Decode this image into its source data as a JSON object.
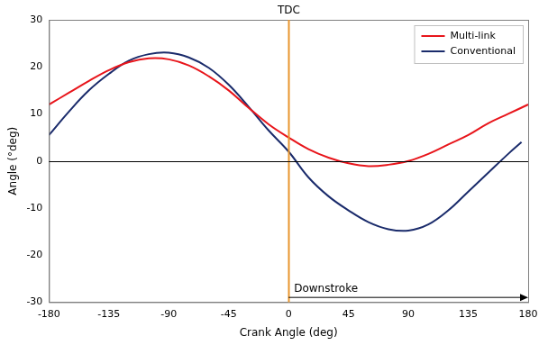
{
  "chart_data": {
    "type": "line",
    "x_label": "Crank Angle (deg)",
    "y_label": "Angle (°deg)",
    "xlim": [
      -180,
      180
    ],
    "xticks": [
      -180,
      -135,
      -90,
      -45,
      0,
      45,
      90,
      135,
      180
    ],
    "ylim": [
      -30,
      30
    ],
    "yticks": [
      -30,
      -20,
      -10,
      0,
      10,
      20,
      30
    ],
    "grid": false,
    "legend": "upper right",
    "series": [
      {
        "name": "Multi-link",
        "color": "#e8151b",
        "x": [
          -180,
          -165,
          -150,
          -135,
          -120,
          -105,
          -90,
          -75,
          -60,
          -45,
          -30,
          -15,
          0,
          15,
          30,
          45,
          60,
          75,
          90,
          105,
          120,
          135,
          150,
          165,
          180
        ],
        "values": [
          12,
          14.5,
          17,
          19.3,
          21,
          21.8,
          21.6,
          20.3,
          18,
          15,
          11.3,
          7.8,
          5,
          2.5,
          0.7,
          -0.5,
          -1.1,
          -0.8,
          0,
          1.5,
          3.5,
          5.5,
          8,
          10,
          12
        ]
      },
      {
        "name": "Conventional",
        "color": "#1a2b6b",
        "x": [
          -180,
          -165,
          -150,
          -135,
          -120,
          -105,
          -90,
          -75,
          -60,
          -45,
          -30,
          -15,
          0,
          15,
          30,
          45,
          60,
          75,
          90,
          105,
          120,
          135,
          150,
          165,
          175
        ],
        "values": [
          5.5,
          10.5,
          15,
          18.5,
          21.3,
          22.7,
          23,
          22,
          19.8,
          16.2,
          11.5,
          6.5,
          2,
          -3.5,
          -7.5,
          -10.5,
          -13,
          -14.5,
          -14.8,
          -13.5,
          -10.5,
          -6.5,
          -2.5,
          1.5,
          4
        ]
      }
    ],
    "annotations": [
      {
        "type": "vline",
        "x": 0,
        "label": "TDC",
        "color": "#e8962e"
      },
      {
        "type": "hline",
        "y": 0,
        "color": "#000000"
      },
      {
        "type": "arrow",
        "x_from": 0,
        "x_to": 180,
        "y": -29,
        "label": "Downstroke",
        "color": "#000000"
      }
    ]
  }
}
